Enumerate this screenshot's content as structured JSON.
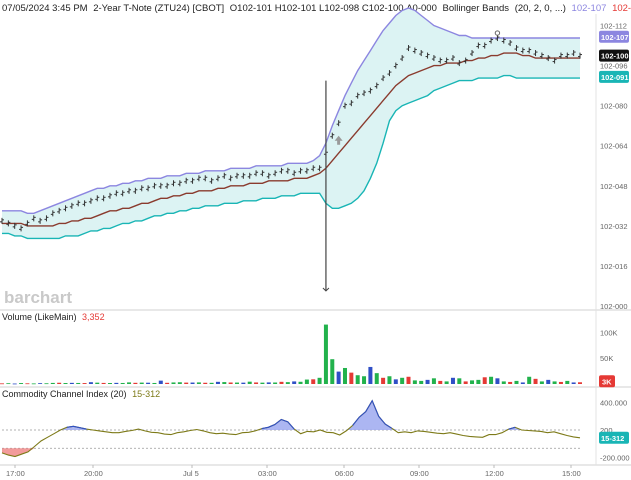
{
  "header": {
    "timestamp": "07/05/2024 3:45 PM",
    "symbol": "2-Year T-Note (ZTU24) [CBOT]",
    "ohlc": "O102-101 H102-101 L102-098 C102-100 Δ0-000",
    "indicator": "Bollinger Bands",
    "indicator_params": "(20, 2, 0, ...)",
    "bb_upper": "102-107",
    "bb_mid": "102-099",
    "bb_lower": "102-091"
  },
  "watermark": "barchart",
  "colors": {
    "candle": "#333333",
    "band_upper": "#8c86e0",
    "band_mid": "#8a3b2e",
    "band_lower": "#19b5b5",
    "band_fill": "#dcf3f3",
    "vol_up": "#22b24c",
    "vol_down": "#e53935",
    "vol_blue": "#2f4fc6",
    "cci_line": "#7d7a18",
    "cci_pos_fill": "#9ea9f0",
    "cci_neg_fill": "#f08a8a",
    "badge_upper": "#8c86e0",
    "badge_close": "#111111",
    "badge_lower": "#19b5b5",
    "badge_vol": "#e53935",
    "badge_cci": "#19b5b5"
  },
  "price_axis": {
    "ticks": [
      "102-112",
      "102-096",
      "102-080",
      "102-064",
      "102-048",
      "102-032",
      "102-016",
      "102-000"
    ],
    "badges": {
      "upper": "102-107",
      "close": "102-100",
      "lower": "102-091"
    }
  },
  "volume_panel": {
    "label": "Volume  (LikeMain)",
    "value": "3,352",
    "ticks": [
      "100K",
      "50K"
    ],
    "badge": "3K"
  },
  "cci_panel": {
    "label": "Commodity Channel Index  (20)",
    "value": "15-312",
    "ticks": [
      "400.000",
      "200",
      "-200.000"
    ],
    "badge": "15-312"
  },
  "time_axis": [
    "17:00",
    "20:00",
    "Jul 5",
    "03:00",
    "06:00",
    "09:00",
    "12:00",
    "15:00"
  ],
  "chart_data": [
    {
      "type": "line",
      "title": "2-Year T-Note (ZTU24) with Bollinger Bands (20, 2)",
      "units": "points (102 + 32nds, 102-000 = 102.0)",
      "ylim": [
        102.0,
        102.115
      ],
      "x_hours_label": "Hours since 17:00 Jul 4",
      "x": [
        0,
        0.25,
        0.5,
        0.75,
        1,
        1.25,
        1.5,
        1.75,
        2,
        2.25,
        2.5,
        2.75,
        3,
        3.25,
        3.5,
        3.75,
        4,
        4.25,
        4.5,
        4.75,
        5,
        5.25,
        5.5,
        5.75,
        6,
        6.25,
        6.5,
        6.75,
        7,
        7.25,
        7.5,
        7.75,
        8,
        8.25,
        8.5,
        8.75,
        9,
        9.25,
        9.5,
        9.75,
        10,
        10.25,
        10.5,
        10.75,
        11,
        11.25,
        11.5,
        11.75,
        12,
        12.25,
        12.5,
        12.75,
        13,
        13.25,
        13.5,
        13.75,
        14,
        14.25,
        14.5,
        14.75,
        15,
        15.25,
        15.5,
        15.75,
        16,
        16.25,
        16.5,
        16.75,
        17,
        17.25,
        17.5,
        17.75,
        18,
        18.25,
        18.5,
        18.75,
        19,
        19.25,
        19.5,
        19.75,
        20,
        20.25,
        20.5,
        20.75,
        21,
        21.25,
        21.5,
        21.75,
        22,
        22.25,
        22.5,
        22.75
      ],
      "series": [
        {
          "name": "Price",
          "values": [
            102.034,
            102.033,
            102.032,
            102.031,
            102.033,
            102.035,
            102.034,
            102.035,
            102.037,
            102.038,
            102.039,
            102.04,
            102.041,
            102.041,
            102.042,
            102.043,
            102.043,
            102.044,
            102.045,
            102.045,
            102.046,
            102.046,
            102.047,
            102.047,
            102.048,
            102.048,
            102.048,
            102.049,
            102.049,
            102.05,
            102.05,
            102.051,
            102.051,
            102.05,
            102.051,
            102.052,
            102.051,
            102.052,
            102.052,
            102.052,
            102.053,
            102.053,
            102.052,
            102.053,
            102.054,
            102.054,
            102.053,
            102.054,
            102.054,
            102.055,
            102.055,
            102.061,
            102.068,
            102.073,
            102.08,
            102.081,
            102.084,
            102.085,
            102.086,
            102.088,
            102.091,
            102.093,
            102.096,
            102.099,
            102.103,
            102.102,
            102.101,
            102.1,
            102.099,
            102.098,
            102.098,
            102.099,
            102.097,
            102.098,
            102.101,
            102.104,
            102.104,
            102.106,
            102.107,
            102.106,
            102.105,
            102.103,
            102.102,
            102.102,
            102.101,
            102.1,
            102.099,
            102.098,
            102.1,
            102.1,
            102.101,
            102.1
          ]
        },
        {
          "name": "Upper band",
          "values": [
            102.038,
            102.038,
            102.038,
            102.038,
            102.037,
            102.037,
            102.038,
            102.039,
            102.04,
            102.041,
            102.042,
            102.043,
            102.044,
            102.045,
            102.046,
            102.047,
            102.047,
            102.048,
            102.048,
            102.049,
            102.049,
            102.05,
            102.05,
            102.051,
            102.051,
            102.051,
            102.052,
            102.052,
            102.052,
            102.053,
            102.053,
            102.053,
            102.054,
            102.054,
            102.054,
            102.054,
            102.055,
            102.055,
            102.055,
            102.055,
            102.056,
            102.056,
            102.056,
            102.056,
            102.056,
            102.057,
            102.057,
            102.057,
            102.057,
            102.058,
            102.06,
            102.065,
            102.072,
            102.078,
            102.084,
            102.089,
            102.094,
            102.098,
            102.102,
            102.106,
            102.11,
            102.113,
            102.116,
            102.118,
            102.119,
            102.118,
            102.116,
            102.114,
            102.112,
            102.111,
            102.11,
            102.109,
            102.108,
            102.108,
            102.107,
            102.107,
            102.107,
            102.107,
            102.107,
            102.107,
            102.107,
            102.107,
            102.107,
            102.107,
            102.107,
            102.107,
            102.107,
            102.107,
            102.107,
            102.107,
            102.107,
            102.107
          ]
        },
        {
          "name": "Middle band",
          "values": [
            102.033,
            102.033,
            102.033,
            102.033,
            102.032,
            102.032,
            102.032,
            102.032,
            102.032,
            102.033,
            102.033,
            102.034,
            102.034,
            102.035,
            102.035,
            102.036,
            102.037,
            102.038,
            102.038,
            102.039,
            102.039,
            102.04,
            102.041,
            102.041,
            102.042,
            102.043,
            102.043,
            102.044,
            102.044,
            102.045,
            102.045,
            102.046,
            102.046,
            102.046,
            102.047,
            102.047,
            102.048,
            102.048,
            102.048,
            102.049,
            102.049,
            102.049,
            102.05,
            102.05,
            102.05,
            102.05,
            102.051,
            102.051,
            102.051,
            102.052,
            102.053,
            102.055,
            102.058,
            102.061,
            102.064,
            102.067,
            102.07,
            102.073,
            102.076,
            102.079,
            102.082,
            102.085,
            102.088,
            102.09,
            102.092,
            102.093,
            102.094,
            102.095,
            102.096,
            102.096,
            102.097,
            102.097,
            102.097,
            102.098,
            102.098,
            102.099,
            102.099,
            102.1,
            102.1,
            102.101,
            102.101,
            102.101,
            102.1,
            102.1,
            102.099,
            102.099,
            102.099,
            102.099,
            102.099,
            102.099,
            102.099,
            102.099
          ]
        },
        {
          "name": "Lower band",
          "values": [
            102.029,
            102.029,
            102.028,
            102.028,
            102.027,
            102.027,
            102.027,
            102.027,
            102.027,
            102.027,
            102.028,
            102.028,
            102.028,
            102.029,
            102.03,
            102.03,
            102.031,
            102.031,
            102.032,
            102.033,
            102.033,
            102.034,
            102.034,
            102.035,
            102.036,
            102.036,
            102.037,
            102.037,
            102.038,
            102.038,
            102.039,
            102.039,
            102.04,
            102.04,
            102.04,
            102.041,
            102.041,
            102.041,
            102.042,
            102.042,
            102.042,
            102.043,
            102.043,
            102.043,
            102.044,
            102.044,
            102.044,
            102.045,
            102.045,
            102.045,
            102.045,
            102.041,
            102.039,
            102.039,
            102.04,
            102.041,
            102.043,
            102.046,
            102.051,
            102.057,
            102.065,
            102.074,
            102.078,
            102.08,
            102.081,
            102.082,
            102.083,
            102.084,
            102.086,
            102.087,
            102.088,
            102.089,
            102.09,
            102.09,
            102.09,
            102.091,
            102.091,
            102.091,
            102.091,
            102.092,
            102.092,
            102.091,
            102.091,
            102.091,
            102.091,
            102.091,
            102.091,
            102.091,
            102.091,
            102.091,
            102.091,
            102.091
          ]
        }
      ],
      "annotations": {
        "spike_low": 102.006,
        "spike_high": 102.09,
        "marker_up_arrow": 102.066
      }
    },
    {
      "type": "bar",
      "title": "Volume (LikeMain)",
      "ylim": [
        0,
        120000
      ],
      "values": [
        1200,
        1500,
        900,
        1800,
        1300,
        1100,
        1600,
        1400,
        2100,
        2400,
        1900,
        2200,
        2000,
        1800,
        3500,
        2600,
        2100,
        1900,
        2200,
        2000,
        3100,
        2300,
        2700,
        2500,
        2000,
        6500,
        2300,
        3000,
        3400,
        2700,
        2800,
        3100,
        2400,
        2300,
        4200,
        3700,
        2900,
        2800,
        2600,
        4500,
        3000,
        2600,
        3100,
        2900,
        4200,
        3600,
        5000,
        4300,
        8600,
        9100,
        12000,
        115000,
        48000,
        24000,
        31000,
        22000,
        17000,
        15000,
        33000,
        21000,
        12000,
        15000,
        9000,
        12000,
        14000,
        7000,
        6000,
        8000,
        11000,
        6000,
        5000,
        12000,
        11000,
        5000,
        7000,
        8000,
        13000,
        14000,
        11000,
        5000,
        4000,
        6000,
        3000,
        14000,
        10000,
        5000,
        8000,
        5000,
        4000,
        6000,
        3000,
        3352
      ],
      "colors_by_bar": [
        "d",
        "u",
        "b",
        "u",
        "d",
        "u",
        "b",
        "u",
        "u",
        "d",
        "u",
        "b",
        "u",
        "d",
        "b",
        "u",
        "d",
        "u",
        "b",
        "u",
        "u",
        "d",
        "u",
        "b",
        "u",
        "b",
        "d",
        "u",
        "u",
        "d",
        "b",
        "u",
        "d",
        "u",
        "b",
        "u",
        "d",
        "u",
        "b",
        "u",
        "d",
        "u",
        "b",
        "u",
        "d",
        "u",
        "b",
        "u",
        "u",
        "d",
        "u",
        "u",
        "u",
        "b",
        "u",
        "d",
        "u",
        "u",
        "b",
        "u",
        "d",
        "u",
        "b",
        "u",
        "d",
        "u",
        "u",
        "b",
        "u",
        "d",
        "u",
        "b",
        "u",
        "d",
        "u",
        "u",
        "d",
        "u",
        "b",
        "u",
        "d",
        "u",
        "b",
        "u",
        "d",
        "u",
        "b",
        "u",
        "d",
        "u",
        "b",
        "d"
      ]
    },
    {
      "type": "area",
      "title": "Commodity Channel Index (20)",
      "ylim": [
        -250,
        450
      ],
      "values": [
        -150,
        -175,
        -190,
        -165,
        -140,
        -80,
        -20,
        20,
        60,
        100,
        130,
        140,
        125,
        110,
        100,
        90,
        80,
        70,
        70,
        85,
        95,
        110,
        90,
        75,
        70,
        55,
        50,
        70,
        80,
        95,
        105,
        90,
        70,
        60,
        65,
        55,
        50,
        70,
        75,
        90,
        115,
        130,
        160,
        215,
        190,
        110,
        60,
        85,
        80,
        100,
        75,
        70,
        45,
        90,
        150,
        240,
        300,
        420,
        250,
        165,
        120,
        70,
        80,
        70,
        90,
        85,
        75,
        65,
        60,
        70,
        55,
        40,
        30,
        25,
        20,
        50,
        50,
        70,
        110,
        130,
        100,
        95,
        90,
        85,
        70,
        80,
        60,
        40,
        25,
        15
      ]
    }
  ]
}
